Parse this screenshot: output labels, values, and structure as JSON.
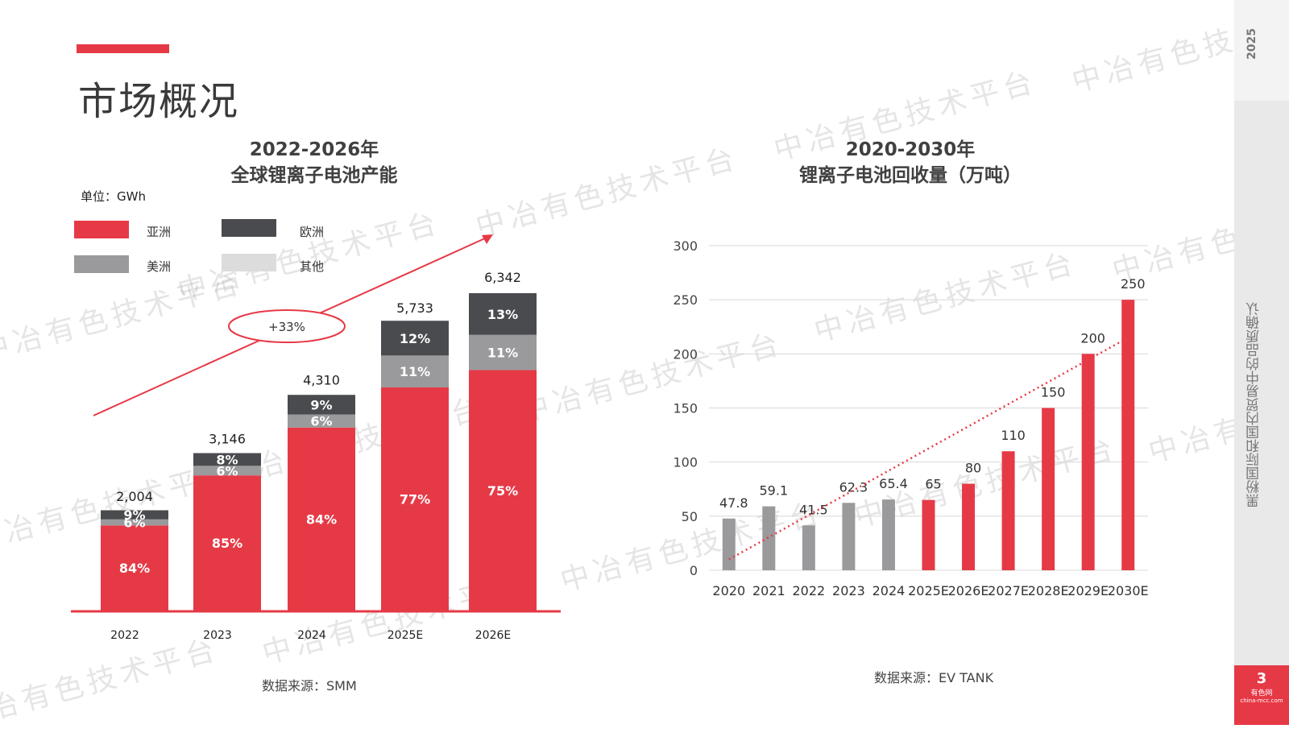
{
  "colors": {
    "asia": "#e63946",
    "europe": "#4a4b4f",
    "america": "#9a9a9c",
    "other": "#dcdcdc",
    "red": "#e63946",
    "gray": "#9a9a9c",
    "accent": "#e63946"
  },
  "page": {
    "title": "市场概况"
  },
  "left": {
    "title_line1": "2022-2026年",
    "title_line2": "全球锂离子电池产能",
    "unit": "单位：GWh",
    "source": "数据来源：SMM"
  },
  "right": {
    "title_line1": "2020-2030年",
    "title_line2": "锂离子电池回收量（万吨）",
    "source": "数据来源：EV TANK"
  },
  "legend": [
    {
      "label": "亚洲",
      "color_key": "asia"
    },
    {
      "label": "欧洲",
      "color_key": "europe"
    },
    {
      "label": "美洲",
      "color_key": "america"
    },
    {
      "label": "其他",
      "color_key": "other"
    }
  ],
  "side": {
    "year": "2025",
    "text": "黑粉国际和国内贸易中的品质确认",
    "page_num": "3",
    "logo_cn": "有色网",
    "logo_url": "china-mcc.com"
  },
  "watermark": "中冶有色技术平台",
  "chart_data": [
    {
      "type": "bar",
      "title": "2022-2026年 全球锂离子电池产能",
      "unit": "GWh",
      "categories": [
        "2022",
        "2023",
        "2024",
        "2025E",
        "2026E"
      ],
      "totals": [
        2004,
        3146,
        4310,
        5733,
        6342
      ],
      "total_labels": [
        "2,004",
        "3,146",
        "4,310",
        "5,733",
        "6,342"
      ],
      "series": [
        {
          "name": "亚洲",
          "values": [
            84,
            85,
            84,
            77,
            75
          ],
          "labels": [
            "84%",
            "85%",
            "84%",
            "77%",
            "75%"
          ]
        },
        {
          "name": "美洲",
          "values": [
            6,
            6,
            6,
            11,
            11
          ],
          "labels": [
            "6%",
            "6%",
            "6%",
            "11%",
            "11%"
          ]
        },
        {
          "name": "欧洲",
          "values": [
            9,
            8,
            9,
            12,
            13
          ],
          "labels": [
            "9%",
            "8%",
            "9%",
            "12%",
            "13%"
          ]
        }
      ],
      "annotation": "+33%",
      "ylim": [
        0,
        6342
      ]
    },
    {
      "type": "bar",
      "title": "2020-2030年 锂离子电池回收量（万吨）",
      "categories": [
        "2020",
        "2021",
        "2022",
        "2023",
        "2024",
        "2025E",
        "2026E",
        "2027E",
        "2028E",
        "2029E",
        "2030E"
      ],
      "values": [
        47.8,
        59.1,
        41.5,
        62.3,
        65.4,
        65,
        80,
        110,
        150,
        200,
        250
      ],
      "value_labels": [
        "47.8",
        "59.1",
        "41.5",
        "62.3",
        "65.4",
        "65",
        "80",
        "110",
        "150",
        "200",
        "250"
      ],
      "bar_colors": [
        "gray",
        "gray",
        "gray",
        "gray",
        "gray",
        "red",
        "red",
        "red",
        "red",
        "red",
        "red"
      ],
      "yticks": [
        0,
        50,
        100,
        150,
        200,
        250,
        300
      ],
      "ylim": [
        0,
        300
      ],
      "trendline": true
    }
  ]
}
